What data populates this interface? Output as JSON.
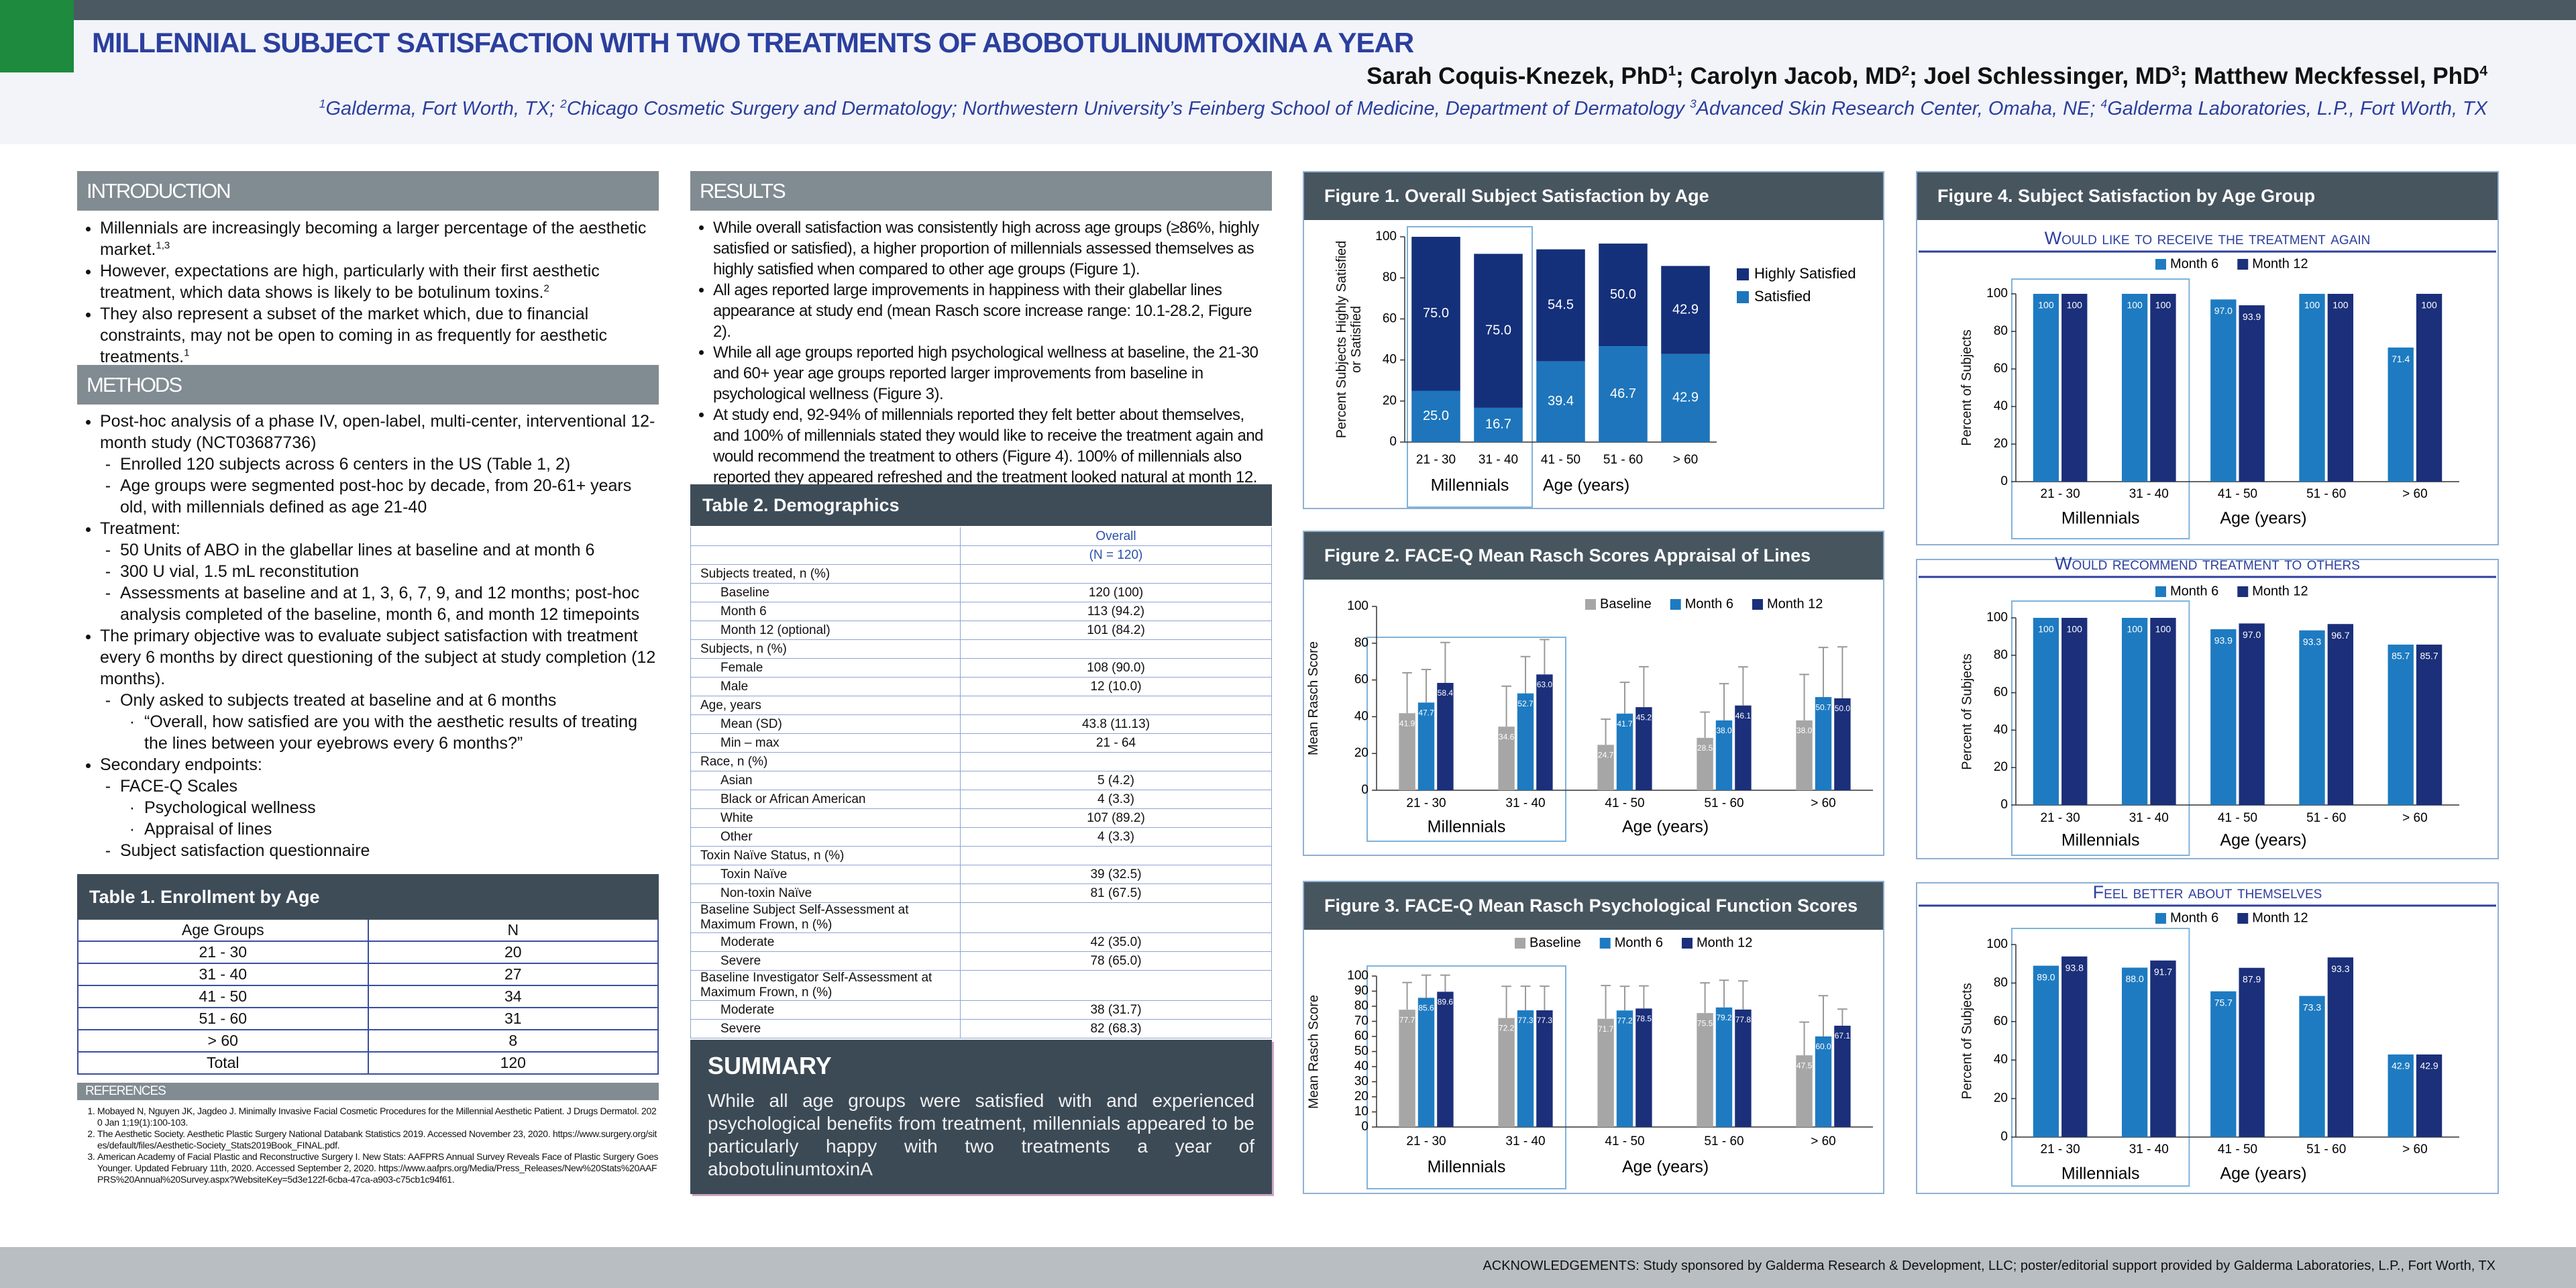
{
  "header": {
    "title": "MILLENNIAL SUBJECT SATISFACTION WITH TWO TREATMENTS OF ABOBOTULINUMTOXINA A YEAR",
    "author_separator": "; ",
    "authors": [
      {
        "name": "Sarah Coquis-Knezek, PhD",
        "sup": "1"
      },
      {
        "name": "Carolyn Jacob, MD",
        "sup": "2"
      },
      {
        "name": "Joel Schlessinger, MD",
        "sup": "3"
      },
      {
        "name": "Matthew Meckfessel, PhD",
        "sup": "4"
      }
    ],
    "affiliations": [
      {
        "sup": "1",
        "text": "Galderma, Fort Worth, TX; "
      },
      {
        "sup": "2",
        "text": "Chicago Cosmetic Surgery and Dermatology; Northwestern University’s Feinberg School of Medicine, Department of Dermatology "
      },
      {
        "sup": "3",
        "text": "Advanced Skin Research Center, Omaha, NE; "
      },
      {
        "sup": "4",
        "text": "Galderma Laboratories, L.P., Fort Worth, TX"
      }
    ]
  },
  "introduction": {
    "heading": "INTRODUCTION",
    "items": [
      {
        "text": "Millennials are increasingly becoming a larger percentage of the aesthetic market.",
        "sup": "1,3"
      },
      {
        "text": "However, expectations are high, particularly with their first aesthetic treatment, which data shows is likely to be botulinum toxins.",
        "sup": "2"
      },
      {
        "text": "They also represent a subset of the market which, due to financial constraints, may not be open to coming in as frequently for aesthetic treatments.",
        "sup": "1"
      }
    ]
  },
  "methods": {
    "heading": "METHODS",
    "items": [
      {
        "text": "Post-hoc analysis of a phase IV, open-label, multi-center, interventional 12-month study (NCT03687736)",
        "items": [
          {
            "text": "Enrolled 120 subjects across 6 centers in the US (Table 1, 2)"
          },
          {
            "text": "Age groups were segmented post-hoc by decade, from 20-61+ years old, with millennials defined as age 21-40"
          }
        ]
      },
      {
        "text": "Treatment:",
        "items": [
          {
            "text": "50 Units of ABO in the glabellar lines at baseline and at month 6"
          },
          {
            "text": "300 U vial, 1.5 mL reconstitution"
          },
          {
            "text": "Assessments at baseline and at 1, 3, 6, 7, 9, and 12 months; post-hoc analysis completed of the baseline, month 6, and month 12 timepoints"
          }
        ]
      },
      {
        "text": "The primary objective was to evaluate subject satisfaction with treatment every 6 months by direct questioning of the subject at study completion (12 months).",
        "items": [
          {
            "text": "Only asked to subjects treated at baseline and at 6 months",
            "items": [
              {
                "text": "“Overall, how satisfied are you with the aesthetic results of treating the lines between your eyebrows every 6 months?”"
              }
            ]
          }
        ]
      },
      {
        "text": "Secondary endpoints:",
        "items": [
          {
            "text": "FACE-Q Scales",
            "items": [
              {
                "text": "Psychological wellness"
              },
              {
                "text": "Appraisal of lines"
              }
            ]
          },
          {
            "text": "Subject satisfaction questionnaire"
          }
        ]
      }
    ]
  },
  "results": {
    "heading": "RESULTS",
    "items": [
      "While overall satisfaction was consistently high across age groups (≥86%, highly satisfied or satisfied), a higher proportion of millennials assessed themselves as highly satisfied when compared to other age groups (Figure 1).",
      "All ages reported large improvements in happiness with their glabellar lines appearance at study end (mean Rasch score increase range: 10.1-28.2, Figure 2).",
      "While all age groups reported high psychological wellness at baseline, the 21-30 and 60+ year age groups reported larger improvements from baseline in psychological wellness (Figure 3).",
      "At study end, 92-94% of millennials reported they felt better about themselves, and 100% of millennials stated they would like to receive the treatment again and would recommend the treatment to others (Figure 4). 100% of millennials also reported they appeared refreshed and the treatment looked natural at month 12."
    ]
  },
  "table1": {
    "title": "Table 1. Enrollment by Age",
    "columns": [
      "Age Groups",
      "N"
    ],
    "rows": [
      [
        "21 - 30",
        20
      ],
      [
        "31 - 40",
        27
      ],
      [
        "41 - 50",
        34
      ],
      [
        "51 - 60",
        31
      ],
      [
        "> 60",
        8
      ],
      [
        "Total",
        120
      ]
    ]
  },
  "table2": {
    "title": "Table 2. Demographics",
    "header": [
      "Overall",
      "(N = 120)"
    ],
    "rows": [
      {
        "label": "Subjects treated, n (%)"
      },
      {
        "label": "Baseline",
        "value": "120 (100)"
      },
      {
        "label": "Month 6",
        "value": "113 (94.2)"
      },
      {
        "label": "Month 12 (optional)",
        "value": "101 (84.2)"
      },
      {
        "label": "Subjects, n (%)"
      },
      {
        "label": "Female",
        "value": "108 (90.0)"
      },
      {
        "label": "Male",
        "value": "12 (10.0)"
      },
      {
        "label": "Age, years"
      },
      {
        "label": "Mean (SD)",
        "value": "43.8 (11.13)"
      },
      {
        "label": "Min – max",
        "value": "21 - 64"
      },
      {
        "label": "Race, n (%)"
      },
      {
        "label": "Asian",
        "value": "5 (4.2)"
      },
      {
        "label": "Black or African American",
        "value": "4 (3.3)"
      },
      {
        "label": "White",
        "value": "107 (89.2)"
      },
      {
        "label": "Other",
        "value": "4 (3.3)"
      },
      {
        "label": "Toxin Naïve Status, n (%)"
      },
      {
        "label": "Toxin Naïve",
        "value": "39 (32.5)"
      },
      {
        "label": "Non-toxin Naïve",
        "value": "81 (67.5)"
      },
      {
        "label": "Baseline Subject Self-Assessment at Maximum Frown, n (%)"
      },
      {
        "label": "Moderate",
        "value": "42 (35.0)"
      },
      {
        "label": "Severe",
        "value": "78 (65.0)"
      },
      {
        "label": "Baseline Investigator Self-Assessment at Maximum Frown, n (%)"
      },
      {
        "label": "Moderate",
        "value": "38 (31.7)"
      },
      {
        "label": "Severe",
        "value": "82 (68.3)"
      }
    ]
  },
  "summary": {
    "title": "SUMMARY",
    "text": "While all age groups were satisfied with and experienced psychological benefits from treatment, millennials appeared to be particularly happy with two treatments a year of abobotulinumtoxinA"
  },
  "references": {
    "heading": "REFERENCES",
    "items": [
      "Mobayed N, Nguyen JK, Jagdeo J. Minimally Invasive Facial Cosmetic Procedures for the Millennial Aesthetic Patient. J Drugs Dermatol. 2020 Jan 1;19(1):100-103.",
      "The Aesthetic Society. Aesthetic Plastic Surgery National Databank Statistics 2019. Accessed November 23, 2020. https://www.surgery.org/sites/default/files/Aesthetic-Society_Stats2019Book_FINAL.pdf.",
      "American Academy of Facial Plastic and Reconstructive Surgery I. New Stats: AAFPRS Annual Survey Reveals Face of Plastic Surgery Goes Younger. Updated February 11th, 2020. Accessed September 2, 2020. https://www.aafprs.org/Media/Press_Releases/New%20Stats%20AAFPRS%20Annual%20Survey.aspx?WebsiteKey=5d3e122f-6cba-47ca-a903-c75cb1c94f61."
    ]
  },
  "acknowledgements": "ACKNOWLEDGEMENTS: Study sponsored by Galderma Research & Development, LLC; poster/editorial support provided by Galderma Laboratories, L.P., Fort Worth, TX",
  "chart_data": [
    {
      "type": "bar",
      "stacked": true,
      "title": "Figure 1. Overall Subject Satisfaction by Age",
      "ylabel": "Percent Subjects Highly Satisfied or Satisfied",
      "x_group_label": "Millennials",
      "xlabel": "Age (years)",
      "categories": [
        "21 - 30",
        "31 - 40",
        "41 - 50",
        "51 - 60",
        "> 60"
      ],
      "series": [
        {
          "name": "Highly Satisfied",
          "color": "#15307a",
          "values": [
            75.0,
            75.0,
            54.5,
            50.0,
            42.9
          ],
          "value_labels": [
            "75.0",
            "75.0",
            "54.5",
            "50.0",
            "42.9"
          ]
        },
        {
          "name": "Satisfied",
          "color": "#1e75bb",
          "values": [
            25.0,
            16.7,
            39.4,
            46.7,
            42.9
          ],
          "value_labels": [
            "25.0",
            "16.7",
            "39.4",
            "46.7",
            "42.9"
          ]
        }
      ],
      "ylim": [
        0,
        100
      ],
      "yticks": [
        0,
        20,
        40,
        60,
        80,
        100
      ],
      "legend": "right"
    },
    {
      "type": "bar",
      "title": "Figure 2. FACE-Q Mean Rasch Scores Appraisal of Lines",
      "ylabel": "Mean Rasch Score",
      "x_group_label": "Millennials",
      "xlabel": "Age (years)",
      "categories": [
        "21 - 30",
        "31 - 40",
        "41 - 50",
        "51 - 60",
        "> 60"
      ],
      "series": [
        {
          "name": "Baseline",
          "color": "#a6a6a6",
          "values": [
            41.9,
            34.6,
            24.7,
            28.5,
            38.0
          ],
          "value_labels": [
            "41.9",
            "34.6",
            "24.7",
            "28.5",
            "38.0"
          ],
          "errors": [
            22,
            22,
            14,
            14,
            25
          ]
        },
        {
          "name": "Month 6",
          "color": "#1e7bc1",
          "values": [
            47.7,
            52.7,
            41.7,
            38.0,
            50.7
          ],
          "value_labels": [
            "47.7",
            "52.7",
            "41.7",
            "38.0",
            "50.7"
          ],
          "errors": [
            18,
            20,
            17,
            20,
            27
          ]
        },
        {
          "name": "Month 12",
          "color": "#1b2f7a",
          "values": [
            58.4,
            63.0,
            45.2,
            46.1,
            50.0
          ],
          "value_labels": [
            "58.4",
            "63.0",
            "45.2",
            "46.1",
            "50.0"
          ],
          "errors": [
            22,
            19,
            22,
            21,
            28
          ]
        }
      ],
      "ylim": [
        0,
        100
      ],
      "yticks": [
        0,
        20,
        40,
        60,
        80,
        100
      ],
      "legend": "top"
    },
    {
      "type": "bar",
      "title": "Figure 3. FACE-Q Mean Rasch Psychological Function Scores",
      "ylabel": "Mean Rasch Score",
      "x_group_label": "Millennials",
      "xlabel": "Age (years)",
      "categories": [
        "21 - 30",
        "31 - 40",
        "41 - 50",
        "51 - 60",
        "> 60"
      ],
      "series": [
        {
          "name": "Baseline",
          "color": "#a6a6a6",
          "values": [
            77.7,
            72.2,
            71.7,
            75.5,
            47.5
          ],
          "value_labels": [
            "77.7",
            "72.2",
            "71.7",
            "75.5",
            "47.5"
          ],
          "errors": [
            18,
            21,
            22,
            20,
            22
          ]
        },
        {
          "name": "Month 6",
          "color": "#1e7bc1",
          "values": [
            85.6,
            77.3,
            77.2,
            79.2,
            60.0
          ],
          "value_labels": [
            "85.6",
            "77.3",
            "77.2",
            "79.2",
            "60.0"
          ],
          "errors": [
            15,
            16,
            16,
            18,
            27
          ]
        },
        {
          "name": "Month 12",
          "color": "#1b2f7a",
          "values": [
            89.6,
            77.3,
            78.5,
            77.8,
            67.1
          ],
          "value_labels": [
            "89.6",
            "77.3",
            "78.5",
            "77.8",
            "67.1"
          ],
          "errors": [
            11,
            16,
            15,
            19,
            11
          ]
        }
      ],
      "ylim": [
        0,
        100
      ],
      "yticks": [
        0,
        10,
        20,
        30,
        40,
        50,
        60,
        70,
        80,
        90,
        100
      ],
      "legend": "top"
    },
    {
      "type": "bar",
      "title": "Figure 4. Subject Satisfaction by Age Group",
      "subtitle": "Would like to receive the treatment again",
      "ylabel": "Percent of Subjects",
      "x_group_label": "Millennials",
      "xlabel": "Age (years)",
      "categories": [
        "21 - 30",
        "31 - 40",
        "41 - 50",
        "51 - 60",
        "> 60"
      ],
      "series": [
        {
          "name": "Month 6",
          "color": "#1e7bc1",
          "values": [
            100,
            100,
            97.0,
            100,
            71.4
          ],
          "value_labels": [
            "100",
            "100",
            "97.0",
            "100",
            "71.4"
          ]
        },
        {
          "name": "Month 12",
          "color": "#1b2f7a",
          "values": [
            100,
            100,
            93.9,
            100,
            100
          ],
          "value_labels": [
            "100",
            "100",
            "93.9",
            "100",
            "100"
          ]
        }
      ],
      "ylim": [
        0,
        100
      ],
      "yticks": [
        0,
        20,
        40,
        60,
        80,
        100
      ],
      "legend": "top"
    },
    {
      "type": "bar",
      "subtitle": "Would recommend treatment to others",
      "ylabel": "Percent of Subjects",
      "x_group_label": "Millennials",
      "xlabel": "Age (years)",
      "categories": [
        "21 - 30",
        "31 - 40",
        "41 - 50",
        "51 - 60",
        "> 60"
      ],
      "series": [
        {
          "name": "Month 6",
          "color": "#1e7bc1",
          "values": [
            100,
            100,
            93.9,
            93.3,
            85.7
          ],
          "value_labels": [
            "100",
            "100",
            "93.9",
            "93.3",
            "85.7"
          ]
        },
        {
          "name": "Month 12",
          "color": "#1b2f7a",
          "values": [
            100,
            100,
            97.0,
            96.7,
            85.7
          ],
          "value_labels": [
            "100",
            "100",
            "97.0",
            "96.7",
            "85.7"
          ]
        }
      ],
      "ylim": [
        0,
        100
      ],
      "yticks": [
        0,
        20,
        40,
        60,
        80,
        100
      ],
      "legend": "top"
    },
    {
      "type": "bar",
      "subtitle": "Feel better about themselves",
      "ylabel": "Percent of Subjects",
      "x_group_label": "Millennials",
      "xlabel": "Age (years)",
      "categories": [
        "21 - 30",
        "31 - 40",
        "41 - 50",
        "51 - 60",
        "> 60"
      ],
      "series": [
        {
          "name": "Month 6",
          "color": "#1e7bc1",
          "values": [
            89.0,
            88.0,
            75.7,
            73.3,
            42.9
          ],
          "value_labels": [
            "89.0",
            "88.0",
            "75.7",
            "73.3",
            "42.9"
          ]
        },
        {
          "name": "Month 12",
          "color": "#1b2f7a",
          "values": [
            93.8,
            91.7,
            87.9,
            93.3,
            42.9
          ],
          "value_labels": [
            "93.8",
            "91.7",
            "87.9",
            "93.3",
            "42.9"
          ]
        }
      ],
      "ylim": [
        0,
        100
      ],
      "yticks": [
        0,
        20,
        40,
        60,
        80,
        100
      ],
      "legend": "top"
    }
  ]
}
